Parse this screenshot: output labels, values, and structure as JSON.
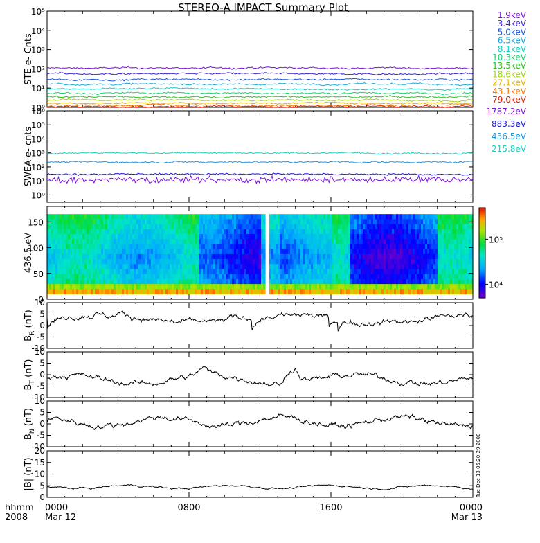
{
  "title": "STEREO-A IMPACT Summary Plot",
  "time_axis": {
    "row1_left": "hhmm",
    "row2_left": "2008",
    "ticks": [
      {
        "hhmm": "0000",
        "date": "Mar 12",
        "hours": 0
      },
      {
        "hhmm": "0800",
        "date": "",
        "hours": 8
      },
      {
        "hhmm": "1600",
        "date": "",
        "hours": 16
      },
      {
        "hhmm": "0000",
        "date": "Mar 13",
        "hours": 24
      }
    ]
  },
  "side_stamp": "Tue Dec 13 05:20:29 2008",
  "colors": {
    "ste": [
      "#7b12d6",
      "#3a1fd6",
      "#1a55e0",
      "#17a8d8",
      "#10cfc0",
      "#12d672",
      "#27c31a",
      "#9ed312",
      "#e8b20a",
      "#f07a0a",
      "#e4200c"
    ],
    "swea": [
      "#7b12d6",
      "#1414d8",
      "#1596e6",
      "#18cfc0"
    ]
  },
  "chart_data": [
    {
      "type": "line",
      "panel": "STE electron counts",
      "ylabel": "STE e- Cnts",
      "yscale": "log",
      "ylim": [
        1,
        100000
      ],
      "ytick_labels": [
        "10⁰",
        "10¹",
        "10²",
        "10³",
        "10⁴",
        "10⁵"
      ],
      "x_hours": [
        0,
        24
      ],
      "series": [
        {
          "name": "1.9keV",
          "approx_level": 110
        },
        {
          "name": "3.4keV",
          "approx_level": 55
        },
        {
          "name": "5.0keV",
          "approx_level": 28
        },
        {
          "name": "6.5keV",
          "approx_level": 16
        },
        {
          "name": "8.1keV",
          "approx_level": 9
        },
        {
          "name": "10.3keV",
          "approx_level": 5.5
        },
        {
          "name": "13.5keV",
          "approx_level": 3.5
        },
        {
          "name": "18.6keV",
          "approx_level": 2.4
        },
        {
          "name": "27.1keV",
          "approx_level": 1.7
        },
        {
          "name": "43.1keV",
          "approx_level": 1.3
        },
        {
          "name": "79.0keV",
          "approx_level": 1.1
        }
      ]
    },
    {
      "type": "line",
      "panel": "SWEA electron counts",
      "ylabel": "SWEA e- cnts",
      "yscale": "log",
      "ylim": [
        0.3,
        1000000
      ],
      "ytick_labels": [
        "10⁰",
        "10¹",
        "10²",
        "10³",
        "10⁴",
        "10⁵",
        "10⁶"
      ],
      "x_hours": [
        0,
        24
      ],
      "series": [
        {
          "name": "1787.2eV",
          "approx_level": 12
        },
        {
          "name": "883.3eV",
          "approx_level": 30
        },
        {
          "name": "436.5eV",
          "approx_level": 220
        },
        {
          "name": "215.8eV",
          "approx_level": 1000
        }
      ]
    },
    {
      "type": "heatmap",
      "panel": "SWEA pitch angle distribution",
      "ylabel": "436.5 eV",
      "ylim": [
        0,
        180
      ],
      "yticks": [
        0,
        50,
        100,
        150
      ],
      "colorbar_ticks": [
        "10⁵",
        "10⁴"
      ],
      "colorbar_range": [
        5000,
        500000
      ],
      "x_hours": [
        0,
        24
      ]
    },
    {
      "type": "line",
      "panel": "B_R",
      "ylabel": "B",
      "ylabel_sub": "R",
      "ylabel_unit": "(nT)",
      "ylim": [
        -10,
        10
      ],
      "yticks": [
        -10,
        -5,
        0,
        5,
        10
      ],
      "x_hours": [
        0,
        24
      ],
      "typical_range": [
        -3,
        6
      ],
      "approx_mean": 3
    },
    {
      "type": "line",
      "panel": "B_T",
      "ylabel": "B",
      "ylabel_sub": "T",
      "ylabel_unit": "(nT)",
      "ylim": [
        -10,
        10
      ],
      "yticks": [
        -10,
        -5,
        0,
        5,
        10
      ],
      "x_hours": [
        0,
        24
      ],
      "typical_range": [
        -6,
        5
      ],
      "approx_mean": -2
    },
    {
      "type": "line",
      "panel": "B_N",
      "ylabel": "B",
      "ylabel_sub": "N",
      "ylabel_unit": "(nT)",
      "ylim": [
        -10,
        10
      ],
      "yticks": [
        -10,
        -5,
        0,
        5,
        10
      ],
      "x_hours": [
        0,
        24
      ],
      "typical_range": [
        -5,
        6
      ],
      "approx_mean": 1
    },
    {
      "type": "line",
      "panel": "|B|",
      "ylabel": "|B| (nT)",
      "ylim": [
        0,
        20
      ],
      "yticks": [
        0,
        5,
        10,
        15,
        20
      ],
      "x_hours": [
        0,
        24
      ],
      "typical_range": [
        2,
        6
      ],
      "approx_mean": 4.5
    }
  ]
}
